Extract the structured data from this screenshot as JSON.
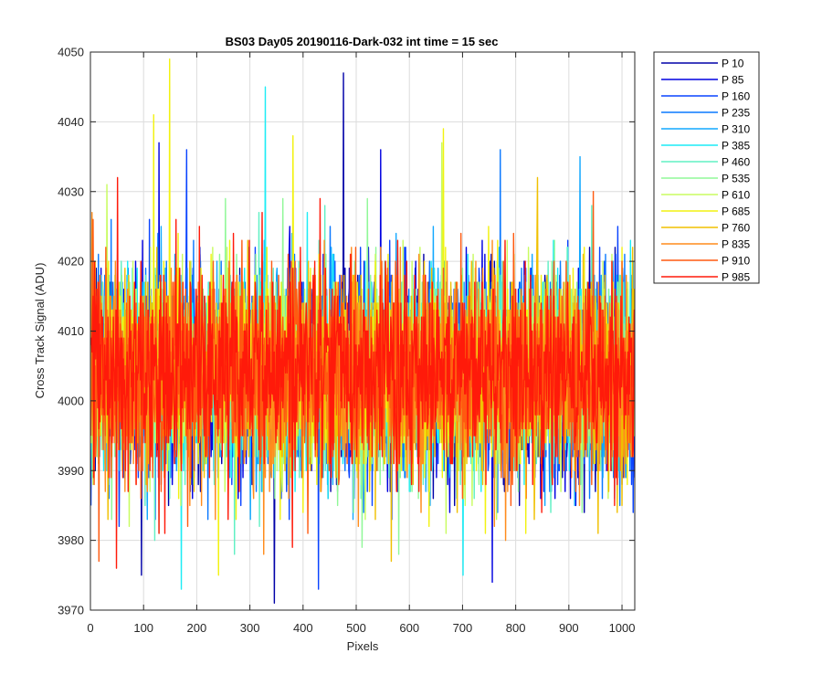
{
  "chart_data": {
    "type": "line",
    "title": "BS03 Day05 20190116-Dark-032 int time = 15 sec",
    "xlabel": "Pixels",
    "ylabel": "Cross Track Signal (ADU)",
    "xlim": [
      0,
      1024
    ],
    "ylim": [
      3970,
      4050
    ],
    "xticks": [
      0,
      100,
      200,
      300,
      400,
      500,
      600,
      700,
      800,
      900,
      1000
    ],
    "yticks": [
      3970,
      3980,
      3990,
      4000,
      4010,
      4020,
      4030,
      4040,
      4050
    ],
    "grid": true,
    "legend_position": "outside-top-right",
    "n_points": 1024,
    "mean": 4004,
    "noise_sd": 7,
    "series": [
      {
        "name": "P 10",
        "color": "#0000a8",
        "seed": 10,
        "spikes": [
          [
            475,
            4047
          ],
          [
            345,
            3971
          ],
          [
            95,
            3975
          ]
        ]
      },
      {
        "name": "P 85",
        "color": "#0000e0",
        "seed": 85,
        "spikes": [
          [
            755,
            3974
          ],
          [
            128,
            4037
          ],
          [
            545,
            4036
          ]
        ]
      },
      {
        "name": "P 160",
        "color": "#0a44ff",
        "seed": 160,
        "spikes": [
          [
            428,
            3973
          ],
          [
            180,
            4036
          ]
        ]
      },
      {
        "name": "P 235",
        "color": "#0a78ff",
        "seed": 235,
        "spikes": [
          [
            770,
            4036
          ],
          [
            220,
            3983
          ]
        ]
      },
      {
        "name": "P 310",
        "color": "#12a8ff",
        "seed": 310,
        "spikes": [
          [
            920,
            4035
          ],
          [
            300,
            3983
          ]
        ]
      },
      {
        "name": "P 385",
        "color": "#1cecf5",
        "seed": 385,
        "spikes": [
          [
            328,
            4045
          ],
          [
            170,
            3973
          ],
          [
            700,
            3975
          ]
        ]
      },
      {
        "name": "P 460",
        "color": "#60f0c4",
        "seed": 460,
        "spikes": [
          [
            440,
            4028
          ],
          [
            270,
            3978
          ]
        ]
      },
      {
        "name": "P 535",
        "color": "#90f898",
        "seed": 535,
        "spikes": [
          [
            520,
            4029
          ],
          [
            510,
            3979
          ]
        ]
      },
      {
        "name": "P 610",
        "color": "#c8fc60",
        "seed": 610,
        "spikes": [
          [
            660,
            4037
          ],
          [
            30,
            4031
          ]
        ]
      },
      {
        "name": "P 685",
        "color": "#f2f210",
        "seed": 685,
        "spikes": [
          [
            148,
            4049
          ],
          [
            118,
            4041
          ],
          [
            240,
            3975
          ],
          [
            380,
            4038
          ],
          [
            663,
            4039
          ]
        ]
      },
      {
        "name": "P 760",
        "color": "#f0c000",
        "seed": 760,
        "spikes": [
          [
            565,
            3977
          ],
          [
            840,
            4032
          ]
        ]
      },
      {
        "name": "P 835",
        "color": "#ff8c1c",
        "seed": 835,
        "spikes": [
          [
            325,
            3978
          ],
          [
            780,
            3980
          ]
        ]
      },
      {
        "name": "P 910",
        "color": "#ff5a10",
        "seed": 910,
        "spikes": [
          [
            945,
            4030
          ],
          [
            15,
            3977
          ]
        ]
      },
      {
        "name": "P 985",
        "color": "#ff1a0a",
        "seed": 985,
        "spikes": [
          [
            50,
            4032
          ],
          [
            48,
            3976
          ],
          [
            160,
            4026
          ]
        ]
      }
    ]
  }
}
